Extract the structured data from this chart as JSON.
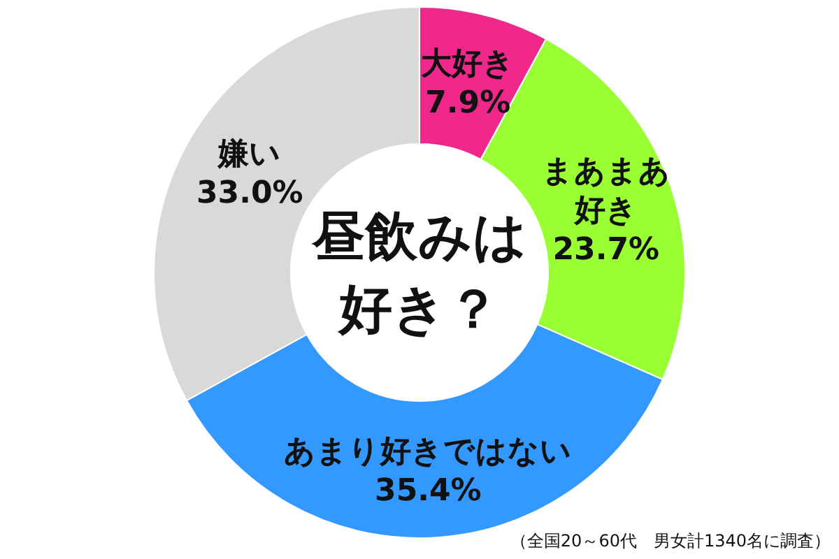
{
  "chart_data": {
    "type": "donut",
    "title": "昼飲みは好き？",
    "categories": [
      "大好き",
      "まあまあ好き",
      "あまり好きではない",
      "嫌い"
    ],
    "values": [
      7.9,
      23.7,
      35.4,
      33.0
    ],
    "value_labels": [
      "7.9%",
      "23.7%",
      "35.4%",
      "33.0%"
    ],
    "colors": [
      "#f0288c",
      "#99ff33",
      "#3399ff",
      "#d9d9d9"
    ],
    "annotations": [
      "（全国20～60代　男女計1340名に調査）"
    ]
  }
}
